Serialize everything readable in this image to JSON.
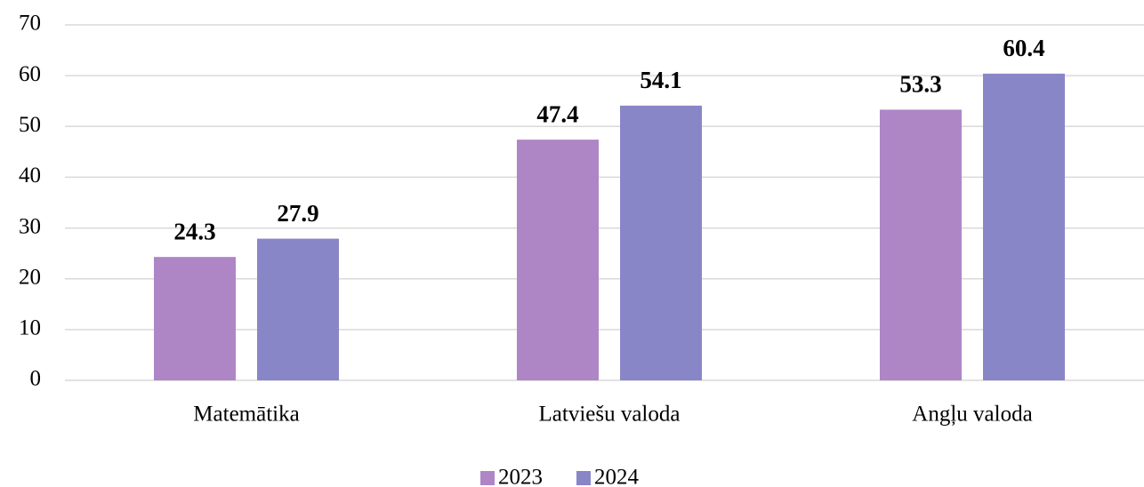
{
  "chart_data": {
    "type": "bar",
    "categories": [
      "Matemātika",
      "Latviešu valoda",
      "Angļu valoda"
    ],
    "series": [
      {
        "name": "2023",
        "color": "#ae86c6",
        "values": [
          24.3,
          47.4,
          53.3
        ]
      },
      {
        "name": "2024",
        "color": "#8986c8",
        "values": [
          27.9,
          54.1,
          60.4
        ]
      }
    ],
    "ylim": [
      0,
      70
    ],
    "yticks": [
      0,
      10,
      20,
      30,
      40,
      50,
      60,
      70
    ],
    "grid": true,
    "legend": "bottom"
  }
}
